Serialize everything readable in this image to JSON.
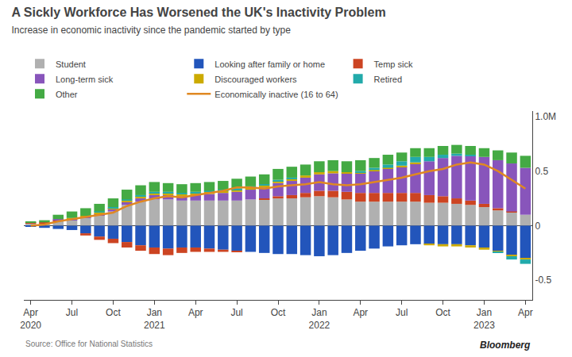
{
  "chart_data": {
    "type": "bar",
    "stacked": true,
    "title": "A Sickly Workforce Has Worsened the UK's Inactivity Problem",
    "subtitle": "Increase in economic inactivity since the pandemic started by type",
    "annotations": [
      "Source: Office for National Statistics",
      "Bloomberg"
    ],
    "categories": [
      "Apr\n2020",
      null,
      null,
      "Jul",
      null,
      null,
      "Oct",
      null,
      null,
      "Jan\n2021",
      null,
      null,
      "Apr",
      null,
      null,
      "Jul",
      null,
      null,
      "Oct",
      null,
      null,
      "Jan\n2022",
      null,
      null,
      "Apr",
      null,
      null,
      "Jul",
      null,
      null,
      "Oct",
      null,
      null,
      "Jan\n2023",
      null,
      null,
      "Apr"
    ],
    "ylim": [
      -0.68,
      1.05
    ],
    "yticks": [
      -0.5,
      0,
      0.5,
      {
        "value": 1.0,
        "label": "1.0M"
      }
    ],
    "grid": false,
    "legend": "top",
    "series": [
      {
        "name": "Student",
        "color": "#b0b0b0",
        "values": [
          0.02,
          0.02,
          0.04,
          0.05,
          0.07,
          0.09,
          0.13,
          0.19,
          0.22,
          0.24,
          0.24,
          0.23,
          0.23,
          0.23,
          0.23,
          0.23,
          0.24,
          0.24,
          0.25,
          0.25,
          0.26,
          0.27,
          0.26,
          0.24,
          0.22,
          0.22,
          0.22,
          0.22,
          0.22,
          0.21,
          0.21,
          0.2,
          0.19,
          0.17,
          0.14,
          0.12,
          0.1
        ]
      },
      {
        "name": "Looking after family or home",
        "color": "#2255bb",
        "values": [
          -0.01,
          -0.02,
          -0.03,
          -0.04,
          -0.07,
          -0.1,
          -0.12,
          -0.15,
          -0.18,
          -0.2,
          -0.21,
          -0.2,
          -0.2,
          -0.21,
          -0.22,
          -0.23,
          -0.24,
          -0.25,
          -0.26,
          -0.26,
          -0.27,
          -0.28,
          -0.27,
          -0.25,
          -0.23,
          -0.21,
          -0.19,
          -0.18,
          -0.17,
          -0.17,
          -0.17,
          -0.17,
          -0.18,
          -0.2,
          -0.23,
          -0.27,
          -0.3
        ]
      },
      {
        "name": "Temp sick",
        "color": "#cc4422",
        "values": [
          0.01,
          0.01,
          0.01,
          0.0,
          -0.02,
          -0.03,
          -0.04,
          -0.05,
          -0.05,
          -0.06,
          -0.06,
          -0.05,
          -0.04,
          -0.03,
          -0.02,
          -0.01,
          0.0,
          0.01,
          0.02,
          0.03,
          0.04,
          0.05,
          0.06,
          0.07,
          0.08,
          0.08,
          0.08,
          0.08,
          0.08,
          0.07,
          0.06,
          0.05,
          0.04,
          0.03,
          0.02,
          0.01,
          0.0
        ]
      },
      {
        "name": "Long-term sick",
        "color": "#8855bb",
        "values": [
          0.0,
          0.0,
          0.01,
          0.01,
          0.01,
          0.02,
          0.02,
          0.03,
          0.03,
          0.04,
          0.04,
          0.04,
          0.05,
          0.06,
          0.07,
          0.08,
          0.09,
          0.1,
          0.12,
          0.13,
          0.14,
          0.15,
          0.16,
          0.17,
          0.18,
          0.2,
          0.22,
          0.24,
          0.27,
          0.31,
          0.35,
          0.39,
          0.41,
          0.43,
          0.44,
          0.44,
          0.43
        ]
      },
      {
        "name": "Discouraged workers",
        "color": "#ccaa00",
        "values": [
          0.0,
          0.0,
          0.0,
          0.01,
          0.01,
          0.01,
          0.01,
          0.01,
          0.02,
          0.02,
          0.02,
          0.02,
          0.02,
          0.02,
          0.02,
          0.02,
          0.02,
          0.02,
          0.02,
          0.02,
          0.02,
          0.02,
          0.02,
          0.01,
          0.01,
          0.01,
          0.01,
          0.01,
          0.01,
          -0.01,
          -0.02,
          -0.02,
          -0.02,
          -0.02,
          -0.01,
          -0.01,
          -0.01
        ]
      },
      {
        "name": "Retired",
        "color": "#22aaaa",
        "values": [
          0.0,
          0.0,
          0.0,
          0.0,
          0.0,
          0.01,
          0.01,
          0.01,
          0.01,
          0.01,
          0.01,
          0.01,
          0.01,
          0.01,
          0.01,
          0.01,
          0.01,
          0.01,
          0.01,
          0.01,
          0.0,
          0.0,
          0.0,
          0.0,
          0.01,
          0.02,
          0.03,
          0.04,
          0.05,
          0.04,
          0.03,
          0.02,
          0.01,
          0.0,
          -0.01,
          -0.03,
          -0.04
        ]
      },
      {
        "name": "Other",
        "color": "#44aa44",
        "values": [
          0.01,
          0.02,
          0.04,
          0.06,
          0.07,
          0.07,
          0.08,
          0.09,
          0.09,
          0.09,
          0.08,
          0.08,
          0.08,
          0.08,
          0.08,
          0.09,
          0.09,
          0.09,
          0.1,
          0.1,
          0.1,
          0.1,
          0.1,
          0.1,
          0.1,
          0.09,
          0.09,
          0.08,
          0.08,
          0.08,
          0.08,
          0.08,
          0.08,
          0.08,
          0.09,
          0.1,
          0.11
        ]
      },
      {
        "name": "Economically inactive (16 to 64)",
        "type": "line",
        "color": "#e08822",
        "values": [
          0.0,
          0.01,
          0.04,
          0.06,
          0.08,
          0.1,
          0.12,
          0.18,
          0.22,
          0.25,
          0.27,
          0.26,
          0.28,
          0.3,
          0.32,
          0.35,
          0.35,
          0.34,
          0.36,
          0.37,
          0.38,
          0.4,
          0.38,
          0.37,
          0.38,
          0.4,
          0.42,
          0.44,
          0.47,
          0.5,
          0.52,
          0.56,
          0.58,
          0.56,
          0.5,
          0.42,
          0.34
        ]
      }
    ]
  }
}
